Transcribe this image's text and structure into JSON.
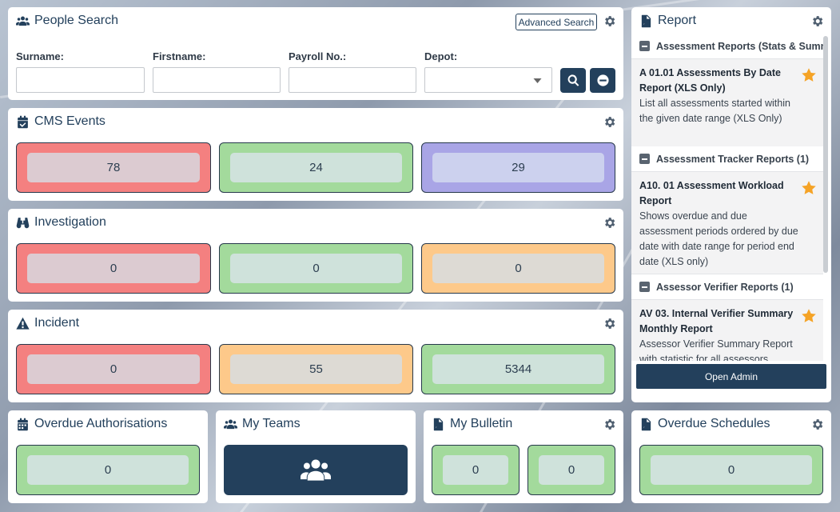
{
  "people_search": {
    "title": "People Search",
    "advanced_label": "Advanced Search",
    "fields": [
      {
        "label": "Surname:",
        "value": ""
      },
      {
        "label": "Firstname:",
        "value": ""
      },
      {
        "label": "Payroll No.:",
        "value": ""
      },
      {
        "label": "Depot:",
        "value": ""
      }
    ]
  },
  "cms_events": {
    "title": "CMS Events",
    "values": [
      "78",
      "24",
      "29"
    ]
  },
  "investigation": {
    "title": "Investigation",
    "values": [
      "0",
      "0",
      "0"
    ]
  },
  "incident": {
    "title": "Incident",
    "values": [
      "0",
      "55",
      "5344"
    ]
  },
  "overdue_auth": {
    "title": "Overdue Authorisations",
    "value": "0"
  },
  "my_teams": {
    "title": "My Teams"
  },
  "my_bulletin": {
    "title": "My Bulletin",
    "values": [
      "0",
      "0"
    ]
  },
  "overdue_schedules": {
    "title": "Overdue Schedules",
    "value": "0"
  },
  "report": {
    "title": "Report",
    "sections": [
      {
        "label": "Assessment Reports (Stats & Summa",
        "item_title": "A 01.01 Assessments By Date Report (XLS Only)",
        "item_desc": "List all assessments started within the given date range (XLS Only)"
      },
      {
        "label": "Assessment Tracker Reports (1)",
        "item_title": "A10. 01 Assessment Workload Report",
        "item_desc": "Shows overdue and due assessment periods ordered by due date with date range for period end date (XLS only)"
      },
      {
        "label": "Assessor Verifier Reports (1)",
        "item_title": "AV 03. Internal Verifier Summary Monthly Report",
        "item_desc": "Assessor Verifier Summary Report with statistic for all assessors"
      }
    ],
    "open_admin": "Open Admin"
  },
  "colors": {
    "primary": "#23405c",
    "red": "#f48080",
    "green": "#a3da9c",
    "purple": "#a9a5e6",
    "orange": "#fdc98a",
    "star": "#f5a326"
  }
}
